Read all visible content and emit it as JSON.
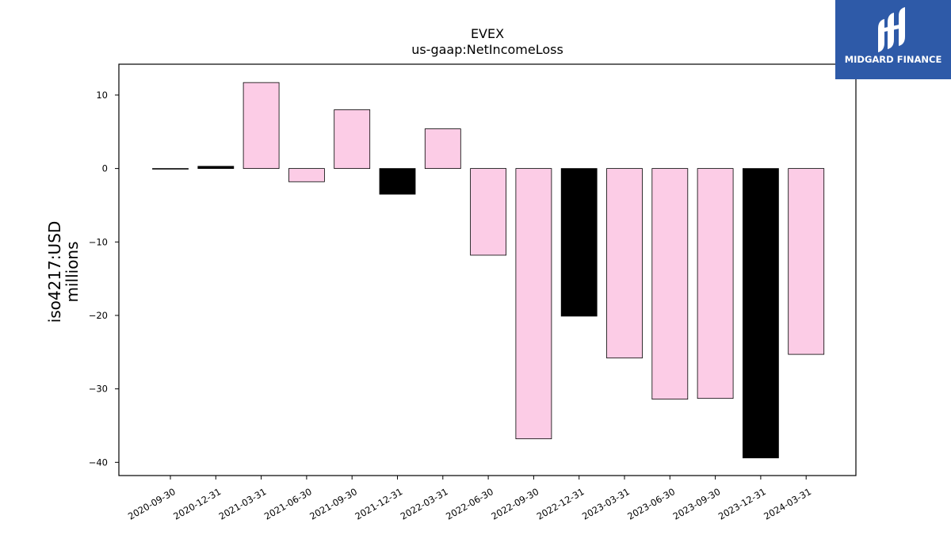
{
  "brand": {
    "name": "MIDGARD FINANCE",
    "bg_color": "#2e5aa8"
  },
  "chart_data": {
    "type": "bar",
    "title": "EVEX",
    "subtitle": "us-gaap:NetIncomeLoss",
    "ylabel_line1": "iso4217:USD",
    "ylabel_line2": "millions",
    "xlabel": "",
    "ylim": [
      -41.8,
      14.2
    ],
    "yticks": [
      10,
      0,
      -10,
      -20,
      -30,
      -40
    ],
    "grid": false,
    "legend": "none",
    "categories": [
      "2020-09-30",
      "2020-12-31",
      "2021-03-31",
      "2021-06-30",
      "2021-09-30",
      "2021-12-31",
      "2022-03-31",
      "2022-06-30",
      "2022-09-30",
      "2022-12-31",
      "2023-03-31",
      "2023-06-30",
      "2023-09-30",
      "2023-12-31",
      "2024-03-31"
    ],
    "values": [
      -0.05,
      0.3,
      11.7,
      -1.8,
      8.0,
      -3.5,
      5.4,
      -11.8,
      -36.8,
      -20.1,
      -25.8,
      -31.4,
      -31.3,
      -39.4,
      -25.3
    ],
    "colors": [
      "#000000",
      "#000000",
      "#fccce6",
      "#fccce6",
      "#fccce6",
      "#000000",
      "#fccce6",
      "#fccce6",
      "#fccce6",
      "#000000",
      "#fccce6",
      "#fccce6",
      "#fccce6",
      "#000000",
      "#fccce6"
    ]
  }
}
